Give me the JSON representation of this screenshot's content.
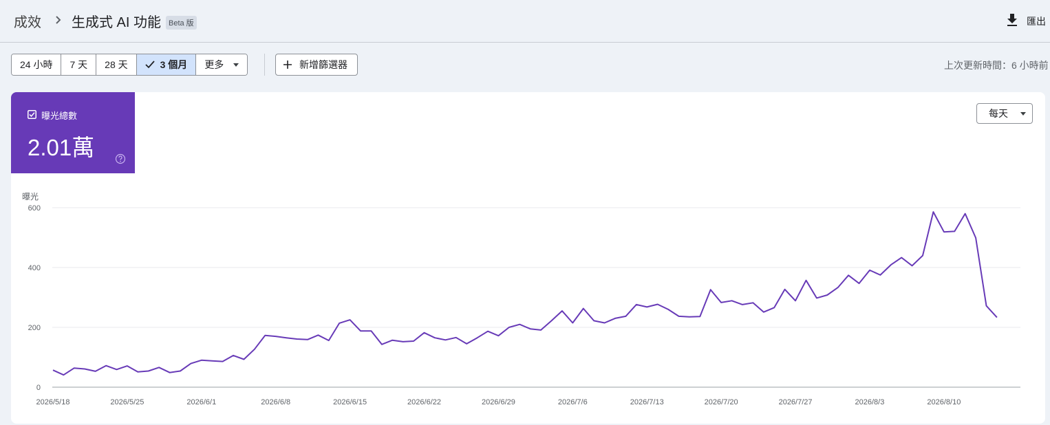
{
  "header": {
    "breadcrumb_root": "成效",
    "title": "生成式 AI 功能",
    "badge": "Beta 版",
    "export_label": "匯出"
  },
  "filters": {
    "ranges": [
      "24 小時",
      "7 天",
      "28 天",
      "3 個月"
    ],
    "selected_index": 3,
    "more_label": "更多",
    "add_filter_label": "新增篩選器",
    "last_updated": "上次更新時間：6 小時前"
  },
  "metric": {
    "label": "曝光總數",
    "value": "2.01萬",
    "color": "#673ab7"
  },
  "granularity": "每天",
  "chart_data": {
    "type": "line",
    "ylabel": "曝光",
    "ylim": [
      0,
      600
    ],
    "yticks": [
      "0",
      "200",
      "400",
      "600"
    ],
    "x_tick_labels": [
      "2026/5/18",
      "2026/5/25",
      "2026/6/1",
      "2026/6/8",
      "2026/6/15",
      "2026/6/22",
      "2026/6/29",
      "2026/7/6",
      "2026/7/13",
      "2026/7/20",
      "2026/7/27",
      "2026/8/3",
      "2026/8/10"
    ],
    "x_start": "2026/5/18",
    "x_end": "2026/8/16",
    "grid": true,
    "series": [
      {
        "color": "#673ab7",
        "values": [
          57,
          41,
          64,
          61,
          53,
          72,
          59,
          71,
          51,
          54,
          66,
          49,
          54,
          79,
          90,
          88,
          86,
          106,
          93,
          127,
          173,
          170,
          165,
          161,
          159,
          174,
          156,
          214,
          225,
          188,
          188,
          143,
          157,
          152,
          154,
          182,
          165,
          158,
          166,
          145,
          165,
          187,
          172,
          200,
          210,
          195,
          191,
          222,
          255,
          215,
          263,
          222,
          215,
          230,
          237,
          276,
          268,
          277,
          260,
          237,
          235,
          236,
          326,
          283,
          289,
          276,
          282,
          251,
          266,
          327,
          289,
          357,
          298,
          308,
          333,
          374,
          347,
          391,
          375,
          409,
          433,
          406,
          440,
          586,
          519,
          521,
          580,
          499,
          272,
          233
        ]
      }
    ]
  }
}
